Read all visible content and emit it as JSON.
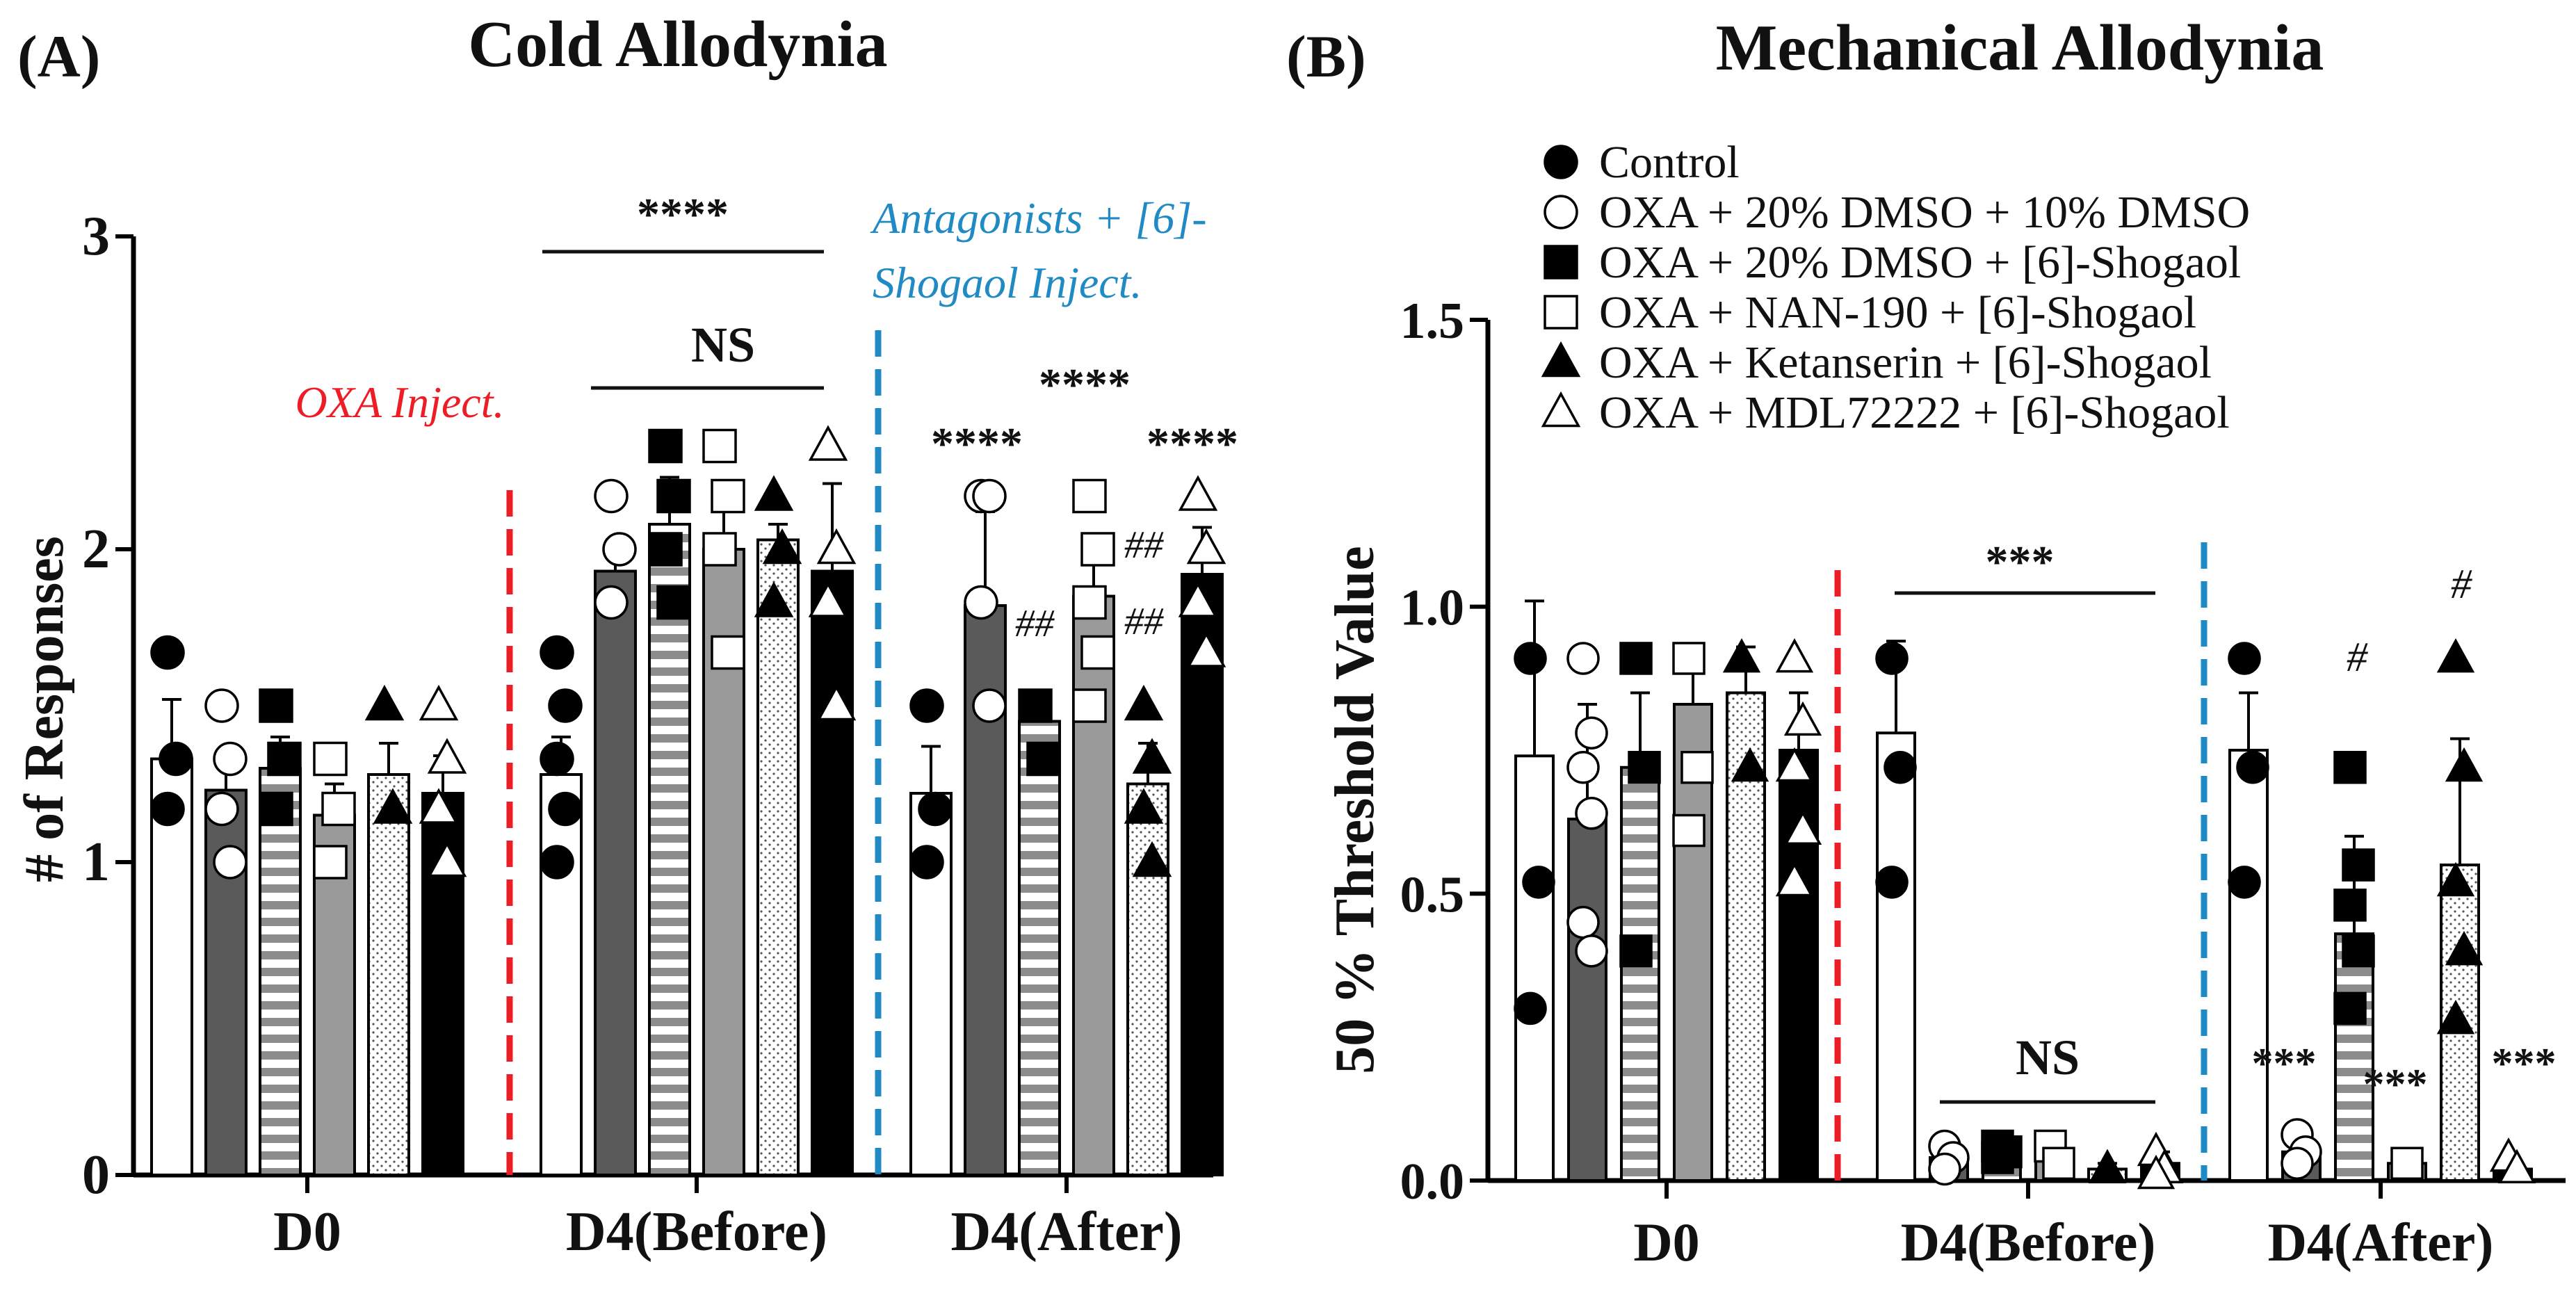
{
  "colors": {
    "red": "#ee1c24",
    "blue": "#1f8ac4",
    "dark": "#5a5a5a",
    "mid": "#9a9a9a",
    "stripe": "#8c8c8c"
  },
  "legend": [
    "Control",
    "OXA + 20% DMSO + 10% DMSO",
    "OXA + 20% DMSO + [6]-Shogaol",
    "OXA + NAN-190 + [6]-Shogaol",
    "OXA + Ketanserin + [6]-Shogaol",
    "OXA + MDL72222 + [6]-Shogaol"
  ],
  "chart_data": [
    {
      "type": "bar",
      "panel": "(A)",
      "title": "Cold Allodynia",
      "xlabel": "",
      "ylabel": "# of Responses",
      "ylim": [
        0,
        3
      ],
      "yticks": [
        "0",
        "1",
        "2",
        "3"
      ],
      "categories": [
        "D0",
        "D4(Before)",
        "D4(After)"
      ],
      "series": [
        {
          "name": "Control",
          "values": [
            1.33,
            1.28,
            1.22
          ],
          "errors": [
            0.19,
            0.12,
            0.15
          ]
        },
        {
          "name": "OXA + 20% DMSO + 10% DMSO",
          "values": [
            1.23,
            1.93,
            1.82
          ],
          "errors": [
            0.12,
            0.1,
            0.3
          ]
        },
        {
          "name": "OXA + 20% DMSO + [6]-Shogaol",
          "values": [
            1.3,
            2.08,
            1.45
          ],
          "errors": [
            0.1,
            0.15,
            0.07
          ]
        },
        {
          "name": "OXA + NAN-190 + [6]-Shogaol",
          "values": [
            1.15,
            2.0,
            1.85
          ],
          "errors": [
            0.1,
            0.12,
            0.15
          ]
        },
        {
          "name": "OXA + Ketanserin + [6]-Shogaol",
          "values": [
            1.28,
            2.03,
            1.25
          ],
          "errors": [
            0.1,
            0.05,
            0.13
          ]
        },
        {
          "name": "OXA + MDL72222 + [6]-Shogaol",
          "values": [
            1.22,
            1.93,
            1.92
          ],
          "errors": [
            0.12,
            0.28,
            0.15
          ]
        }
      ],
      "points": [
        [
          [
            1.67,
            1.33,
            1.17
          ],
          [
            1.5,
            1.33,
            1.17,
            1.0
          ],
          [
            1.5,
            1.33,
            1.17
          ],
          [
            1.33,
            1.17,
            1.0
          ],
          [
            1.5,
            1.17
          ],
          [
            1.5,
            1.33,
            1.17,
            1.0
          ]
        ],
        [
          [
            1.67,
            1.5,
            1.33,
            1.17,
            1.0
          ],
          [
            2.17,
            2.0,
            1.83
          ],
          [
            2.33,
            2.17,
            2.0,
            1.83
          ],
          [
            2.33,
            2.17,
            2.0,
            1.67
          ],
          [
            2.17,
            2.0,
            1.83
          ],
          [
            2.33,
            2.0,
            1.83,
            1.5
          ]
        ],
        [
          [
            1.5,
            1.17,
            1.0
          ],
          [
            2.17,
            2.17,
            1.83,
            1.5
          ],
          [
            1.5,
            1.33
          ],
          [
            2.17,
            2.0,
            1.83,
            1.67,
            1.5
          ],
          [
            1.5,
            1.33,
            1.17,
            1.0
          ],
          [
            2.17,
            2.0,
            1.83,
            1.67
          ]
        ]
      ],
      "annotations": {
        "red_line_label": "OXA Inject.",
        "blue_line_label_1": "Antagonists + [6]-",
        "blue_line_label_2": "Shogaol Inject.",
        "bracket_top": "****",
        "bracket_ns": "NS",
        "after_group": "****",
        "after_oxa": "****",
        "after_mdl": "****",
        "hash_shogaol": "##",
        "hash_ket_1": "##",
        "hash_ket_2": "##"
      }
    },
    {
      "type": "bar",
      "panel": "(B)",
      "title": "Mechanical Allodynia",
      "xlabel": "",
      "ylabel": "50 % Threshold Value",
      "ylim": [
        0,
        1.5
      ],
      "yticks": [
        "0.0",
        "0.5",
        "1.0",
        "1.5"
      ],
      "categories": [
        "D0",
        "D4(Before)",
        "D4(After)"
      ],
      "series": [
        {
          "name": "Control",
          "values": [
            0.74,
            0.78,
            0.75
          ],
          "errors": [
            0.27,
            0.16,
            0.1
          ]
        },
        {
          "name": "OXA + 20% DMSO + 10% DMSO",
          "values": [
            0.63,
            0.04,
            0.05
          ],
          "errors": [
            0.2,
            0.01,
            0.02
          ]
        },
        {
          "name": "OXA + 20% DMSO + [6]-Shogaol",
          "values": [
            0.72,
            0.05,
            0.43
          ],
          "errors": [
            0.13,
            0.01,
            0.17
          ]
        },
        {
          "name": "OXA + NAN-190 + [6]-Shogaol",
          "values": [
            0.83,
            0.05,
            0.03
          ],
          "errors": [
            0.1,
            0.01,
            0.01
          ]
        },
        {
          "name": "OXA + Ketanserin + [6]-Shogaol",
          "values": [
            0.85,
            0.02,
            0.55
          ],
          "errors": [
            0.08,
            0.01,
            0.22
          ]
        },
        {
          "name": "OXA + MDL72222 + [6]-Shogaol",
          "values": [
            0.75,
            0.03,
            0.02
          ],
          "errors": [
            0.1,
            0.02,
            0.01
          ]
        }
      ],
      "points": [
        [
          [
            0.91,
            0.52,
            0.3
          ],
          [
            0.91,
            0.78,
            0.72,
            0.64,
            0.45,
            0.4
          ],
          [
            0.91,
            0.72,
            0.4
          ],
          [
            0.91,
            0.72,
            0.61
          ],
          [
            0.91,
            0.72
          ],
          [
            0.91,
            0.8,
            0.72,
            0.61,
            0.52
          ]
        ],
        [
          [
            0.91,
            0.72,
            0.52
          ],
          [
            0.06,
            0.04,
            0.02
          ],
          [
            0.06,
            0.05,
            0.04
          ],
          [
            0.06,
            0.03
          ],
          [
            0.02
          ],
          [
            0.05,
            0.02,
            0.01
          ]
        ],
        [
          [
            0.91,
            0.72,
            0.52
          ],
          [
            0.08,
            0.05,
            0.03
          ],
          [
            0.72,
            0.55,
            0.48,
            0.4,
            0.3
          ],
          [
            0.03
          ],
          [
            0.91,
            0.72,
            0.52,
            0.4,
            0.28
          ],
          [
            0.04,
            0.02
          ]
        ]
      ],
      "annotations": {
        "bracket_top": "***",
        "bracket_ns": "NS",
        "stars_oxa": "***",
        "stars_nan": "***",
        "stars_mdl": "***",
        "hash_shogaol": "#",
        "hash_ket": "#"
      }
    }
  ]
}
